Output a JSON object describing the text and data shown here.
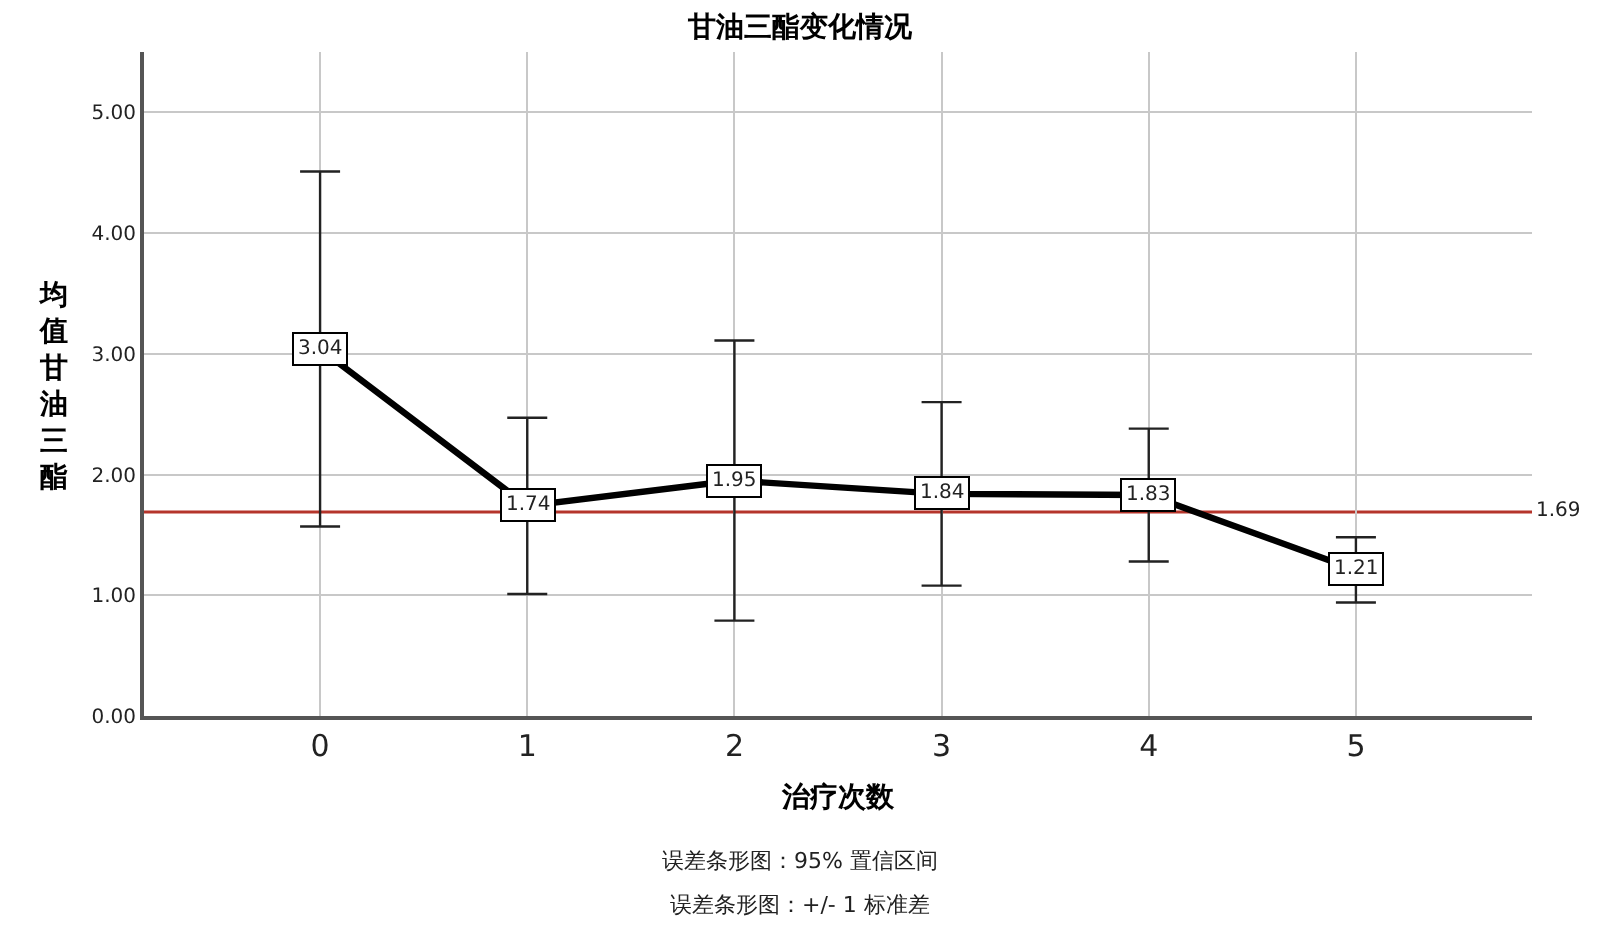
{
  "chart_data": {
    "type": "line",
    "title": "甘油三酯变化情况",
    "xlabel": "治疗次数",
    "ylabel": "均值甘油三酯",
    "annotations": [
      "误差条形图：95% 置信区间",
      "误差条形图：+/- 1 标准差"
    ],
    "categories": [
      "0",
      "1",
      "2",
      "3",
      "4",
      "5"
    ],
    "values": [
      3.04,
      1.74,
      1.95,
      1.84,
      1.83,
      1.21
    ],
    "errors": [
      1.47,
      0.73,
      1.16,
      0.76,
      0.55,
      0.27
    ],
    "color": "#000000",
    "ylim": [
      0,
      5.5
    ],
    "yticks": [
      {
        "value": 0,
        "label": "0.00"
      },
      {
        "value": 1,
        "label": "1.00"
      },
      {
        "value": 2,
        "label": "2.00"
      },
      {
        "value": 3,
        "label": "3.00"
      },
      {
        "value": 4,
        "label": "4.00"
      },
      {
        "value": 5,
        "label": "5.00"
      }
    ],
    "ref_lines": [
      {
        "axis": "y",
        "value": 1.69,
        "label": "1.69",
        "color": "#b5352b"
      }
    ],
    "data_labels": true,
    "grid": true,
    "legend": false,
    "marker": "square",
    "line_style": "solid"
  }
}
